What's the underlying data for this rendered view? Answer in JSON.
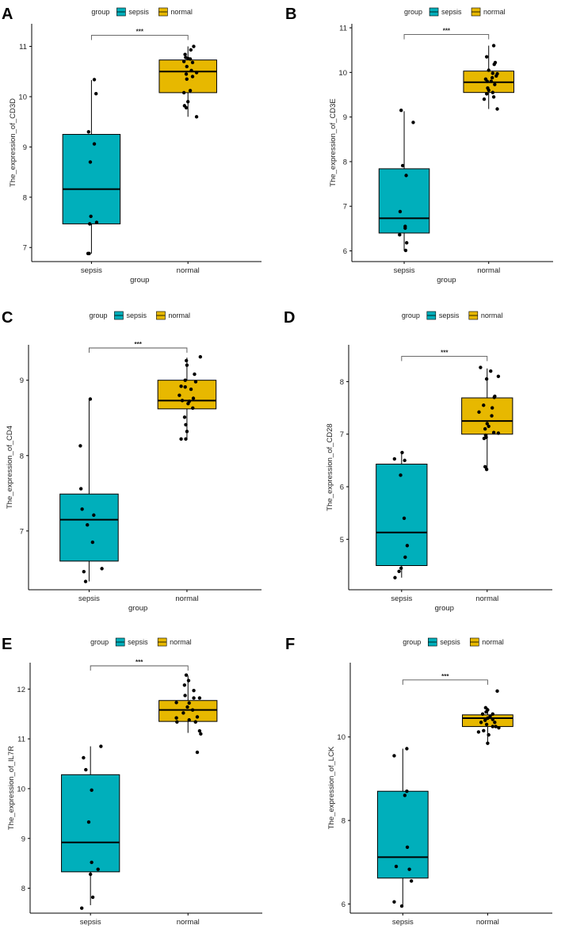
{
  "colors": {
    "sepsis": "#00AFBB",
    "normal": "#E7B800",
    "axis": "#000000",
    "point": "#000000",
    "bracket": "#555555"
  },
  "chart_data": [
    {
      "panel": "A",
      "type": "box",
      "ylabel": "The_expression_of_CD3D",
      "xlabel": "group",
      "legend_title": "group",
      "legend_items": [
        "sepsis",
        "normal"
      ],
      "legend_position": "top",
      "ylim": [
        6.72,
        11.45
      ],
      "yticks": [
        7,
        8,
        9,
        10,
        11
      ],
      "significance": "***",
      "groups": [
        {
          "name": "sepsis",
          "q1": 7.47,
          "median": 8.16,
          "q3": 9.25,
          "whisker_low": 6.88,
          "whisker_high": 10.33,
          "points": [
            [
              0.05,
              10.34
            ],
            [
              0.08,
              10.06
            ],
            [
              -0.05,
              9.3
            ],
            [
              0.05,
              9.06
            ],
            [
              -0.02,
              8.7
            ],
            [
              -0.01,
              7.62
            ],
            [
              0.09,
              7.5
            ],
            [
              -0.03,
              7.47
            ],
            [
              -0.04,
              6.88
            ],
            [
              -0.06,
              6.88
            ]
          ]
        },
        {
          "name": "normal",
          "q1": 10.08,
          "median": 10.5,
          "q3": 10.73,
          "whisker_low": 9.6,
          "whisker_high": 11.0,
          "points": [
            [
              -0.05,
              10.84
            ],
            [
              -0.04,
              10.78
            ],
            [
              0.0,
              10.76
            ],
            [
              0.04,
              10.75
            ],
            [
              0.1,
              11.0
            ],
            [
              0.05,
              10.93
            ],
            [
              -0.07,
              10.7
            ],
            [
              0.08,
              10.68
            ],
            [
              -0.02,
              10.6
            ],
            [
              0.06,
              10.52
            ],
            [
              0.15,
              10.48
            ],
            [
              -0.03,
              10.45
            ],
            [
              0.08,
              10.4
            ],
            [
              -0.02,
              10.35
            ],
            [
              0.04,
              10.12
            ],
            [
              -0.07,
              10.08
            ],
            [
              0.0,
              9.9
            ],
            [
              -0.06,
              9.82
            ],
            [
              -0.03,
              9.78
            ],
            [
              0.15,
              9.6
            ]
          ]
        }
      ]
    },
    {
      "panel": "B",
      "type": "box",
      "ylabel": "The_expression_of_CD3E",
      "xlabel": "group",
      "legend_title": "group",
      "legend_items": [
        "sepsis",
        "normal"
      ],
      "legend_position": "top",
      "ylim": [
        5.76,
        11.09
      ],
      "yticks": [
        6,
        7,
        8,
        9,
        10,
        11
      ],
      "significance": "***",
      "groups": [
        {
          "name": "sepsis",
          "q1": 6.4,
          "median": 6.73,
          "q3": 7.84,
          "whisker_low": 6.0,
          "whisker_high": 9.13,
          "points": [
            [
              -0.06,
              9.15
            ],
            [
              0.18,
              8.88
            ],
            [
              -0.03,
              7.91
            ],
            [
              0.04,
              7.69
            ],
            [
              -0.08,
              6.88
            ],
            [
              0.02,
              6.55
            ],
            [
              0.02,
              6.51
            ],
            [
              -0.09,
              6.36
            ],
            [
              0.05,
              6.18
            ],
            [
              0.03,
              6.01
            ]
          ]
        },
        {
          "name": "normal",
          "q1": 9.55,
          "median": 9.78,
          "q3": 10.03,
          "whisker_low": 9.18,
          "whisker_high": 10.6,
          "points": [
            [
              0.1,
              10.6
            ],
            [
              -0.04,
              10.35
            ],
            [
              0.13,
              10.22
            ],
            [
              0.11,
              10.18
            ],
            [
              0.0,
              10.05
            ],
            [
              0.08,
              9.98
            ],
            [
              0.17,
              9.97
            ],
            [
              0.15,
              9.92
            ],
            [
              0.07,
              9.88
            ],
            [
              -0.06,
              9.85
            ],
            [
              0.05,
              9.8
            ],
            [
              -0.03,
              9.8
            ],
            [
              0.12,
              9.73
            ],
            [
              -0.02,
              9.65
            ],
            [
              0.0,
              9.6
            ],
            [
              0.08,
              9.55
            ],
            [
              -0.04,
              9.52
            ],
            [
              0.1,
              9.45
            ],
            [
              -0.09,
              9.4
            ],
            [
              0.17,
              9.18
            ]
          ]
        }
      ]
    },
    {
      "panel": "C",
      "type": "box",
      "ylabel": "The_expression_of_CD4",
      "xlabel": "group",
      "legend_title": "group",
      "legend_items": [
        "sepsis",
        "normal"
      ],
      "legend_position": "top",
      "ylim": [
        6.22,
        9.47
      ],
      "yticks": [
        7,
        8,
        9
      ],
      "significance": "***",
      "groups": [
        {
          "name": "sepsis",
          "q1": 6.6,
          "median": 7.15,
          "q3": 7.49,
          "whisker_low": 6.33,
          "whisker_high": 8.75,
          "points": [
            [
              0.02,
              8.75
            ],
            [
              -0.15,
              8.13
            ],
            [
              -0.14,
              7.56
            ],
            [
              -0.12,
              7.29
            ],
            [
              0.08,
              7.21
            ],
            [
              -0.03,
              7.08
            ],
            [
              0.06,
              6.85
            ],
            [
              0.22,
              6.5
            ],
            [
              -0.09,
              6.46
            ],
            [
              -0.06,
              6.33
            ]
          ]
        },
        {
          "name": "normal",
          "q1": 8.62,
          "median": 8.73,
          "q3": 9.0,
          "whisker_low": 8.22,
          "whisker_high": 9.3,
          "points": [
            [
              0.23,
              9.31
            ],
            [
              -0.01,
              9.26
            ],
            [
              0.0,
              9.2
            ],
            [
              0.13,
              9.08
            ],
            [
              -0.03,
              9.0
            ],
            [
              0.15,
              8.98
            ],
            [
              -0.1,
              8.92
            ],
            [
              -0.03,
              8.91
            ],
            [
              0.07,
              8.88
            ],
            [
              -0.13,
              8.8
            ],
            [
              0.11,
              8.76
            ],
            [
              -0.08,
              8.73
            ],
            [
              0.04,
              8.72
            ],
            [
              0.02,
              8.69
            ],
            [
              0.1,
              8.63
            ],
            [
              -0.04,
              8.51
            ],
            [
              -0.02,
              8.41
            ],
            [
              0.0,
              8.32
            ],
            [
              -0.1,
              8.22
            ],
            [
              -0.02,
              8.22
            ]
          ]
        }
      ]
    },
    {
      "panel": "D",
      "type": "box",
      "ylabel": "The_expression_of_CD28",
      "xlabel": "group",
      "legend_title": "group",
      "legend_items": [
        "sepsis",
        "normal"
      ],
      "legend_position": "top",
      "ylim": [
        4.04,
        8.7
      ],
      "yticks": [
        5,
        6,
        7,
        8
      ],
      "significance": "***",
      "groups": [
        {
          "name": "sepsis",
          "q1": 4.5,
          "median": 5.13,
          "q3": 6.43,
          "whisker_low": 4.27,
          "whisker_high": 6.66,
          "points": [
            [
              0.01,
              6.65
            ],
            [
              -0.14,
              6.53
            ],
            [
              0.06,
              6.5
            ],
            [
              -0.02,
              6.22
            ],
            [
              0.05,
              5.4
            ],
            [
              0.11,
              4.88
            ],
            [
              0.07,
              4.66
            ],
            [
              -0.01,
              4.45
            ],
            [
              -0.05,
              4.39
            ],
            [
              -0.13,
              4.27
            ]
          ]
        },
        {
          "name": "normal",
          "q1": 7.0,
          "median": 7.25,
          "q3": 7.69,
          "whisker_low": 6.35,
          "whisker_high": 8.25,
          "points": [
            [
              -0.13,
              8.27
            ],
            [
              0.07,
              8.2
            ],
            [
              -0.01,
              8.05
            ],
            [
              0.22,
              8.1
            ],
            [
              0.15,
              7.72
            ],
            [
              0.14,
              7.7
            ],
            [
              -0.07,
              7.55
            ],
            [
              0.1,
              7.5
            ],
            [
              0.09,
              7.35
            ],
            [
              -0.16,
              7.42
            ],
            [
              0.0,
              7.2
            ],
            [
              0.03,
              7.15
            ],
            [
              -0.04,
              7.1
            ],
            [
              0.13,
              7.03
            ],
            [
              0.22,
              7.02
            ],
            [
              -0.03,
              6.98
            ],
            [
              -0.02,
              6.94
            ],
            [
              -0.06,
              6.92
            ],
            [
              -0.04,
              6.38
            ],
            [
              -0.01,
              6.33
            ]
          ]
        }
      ]
    },
    {
      "panel": "E",
      "type": "box",
      "ylabel": "The_expression_of_IL7R",
      "xlabel": "group",
      "legend_title": "group",
      "legend_items": [
        "sepsis",
        "normal"
      ],
      "legend_position": "top",
      "ylim": [
        7.5,
        12.53
      ],
      "yticks": [
        8,
        9,
        10,
        11,
        12
      ],
      "significance": "***",
      "groups": [
        {
          "name": "sepsis",
          "q1": 8.33,
          "median": 8.92,
          "q3": 10.28,
          "whisker_low": 7.66,
          "whisker_high": 10.85,
          "points": [
            [
              0.18,
              10.85
            ],
            [
              -0.12,
              10.62
            ],
            [
              -0.08,
              10.38
            ],
            [
              0.02,
              9.97
            ],
            [
              -0.03,
              9.33
            ],
            [
              0.02,
              8.52
            ],
            [
              0.13,
              8.38
            ],
            [
              0.0,
              8.28
            ],
            [
              0.04,
              7.82
            ],
            [
              -0.15,
              7.6
            ]
          ]
        },
        {
          "name": "normal",
          "q1": 11.35,
          "median": 11.58,
          "q3": 11.77,
          "whisker_low": 11.12,
          "whisker_high": 12.27,
          "points": [
            [
              -0.03,
              12.28
            ],
            [
              -0.06,
              12.08
            ],
            [
              0.01,
              12.17
            ],
            [
              0.1,
              11.97
            ],
            [
              -0.05,
              11.87
            ],
            [
              0.1,
              11.82
            ],
            [
              0.2,
              11.82
            ],
            [
              -0.2,
              11.73
            ],
            [
              0.02,
              11.72
            ],
            [
              -0.01,
              11.64
            ],
            [
              0.08,
              11.58
            ],
            [
              -0.08,
              11.52
            ],
            [
              -0.2,
              11.42
            ],
            [
              0.02,
              11.38
            ],
            [
              0.16,
              11.44
            ],
            [
              -0.19,
              11.34
            ],
            [
              0.13,
              11.34
            ],
            [
              0.2,
              11.16
            ],
            [
              0.22,
              11.1
            ],
            [
              0.16,
              10.73
            ]
          ]
        }
      ]
    },
    {
      "panel": "F",
      "type": "box",
      "ylabel": "The_expression_of_LCK",
      "xlabel": "group",
      "legend_title": "group",
      "legend_items": [
        "sepsis",
        "normal"
      ],
      "legend_position": "top",
      "ylim": [
        5.78,
        11.78
      ],
      "yticks": [
        6,
        8,
        10
      ],
      "significance": "***",
      "groups": [
        {
          "name": "sepsis",
          "q1": 6.62,
          "median": 7.12,
          "q3": 8.7,
          "whisker_low": 5.95,
          "whisker_high": 9.72,
          "points": [
            [
              0.08,
              9.72
            ],
            [
              -0.17,
              9.55
            ],
            [
              0.08,
              8.7
            ],
            [
              0.04,
              8.6
            ],
            [
              0.09,
              7.36
            ],
            [
              -0.13,
              6.9
            ],
            [
              0.13,
              6.83
            ],
            [
              -0.17,
              6.05
            ],
            [
              -0.02,
              5.95
            ],
            [
              0.17,
              6.55
            ]
          ]
        },
        {
          "name": "normal",
          "q1": 10.25,
          "median": 10.45,
          "q3": 10.53,
          "whisker_low": 9.85,
          "whisker_high": 10.7,
          "points": [
            [
              0.19,
              11.1
            ],
            [
              -0.04,
              10.7
            ],
            [
              -0.03,
              10.6
            ],
            [
              0.0,
              10.65
            ],
            [
              0.1,
              10.55
            ],
            [
              -0.1,
              10.55
            ],
            [
              0.05,
              10.5
            ],
            [
              0.0,
              10.45
            ],
            [
              -0.05,
              10.4
            ],
            [
              0.1,
              10.42
            ],
            [
              0.14,
              10.35
            ],
            [
              -0.13,
              10.35
            ],
            [
              -0.02,
              10.3
            ],
            [
              0.1,
              10.25
            ],
            [
              0.16,
              10.25
            ],
            [
              0.22,
              10.22
            ],
            [
              -0.18,
              10.12
            ],
            [
              -0.08,
              10.15
            ],
            [
              0.02,
              10.05
            ],
            [
              0.0,
              9.85
            ]
          ]
        }
      ]
    }
  ]
}
